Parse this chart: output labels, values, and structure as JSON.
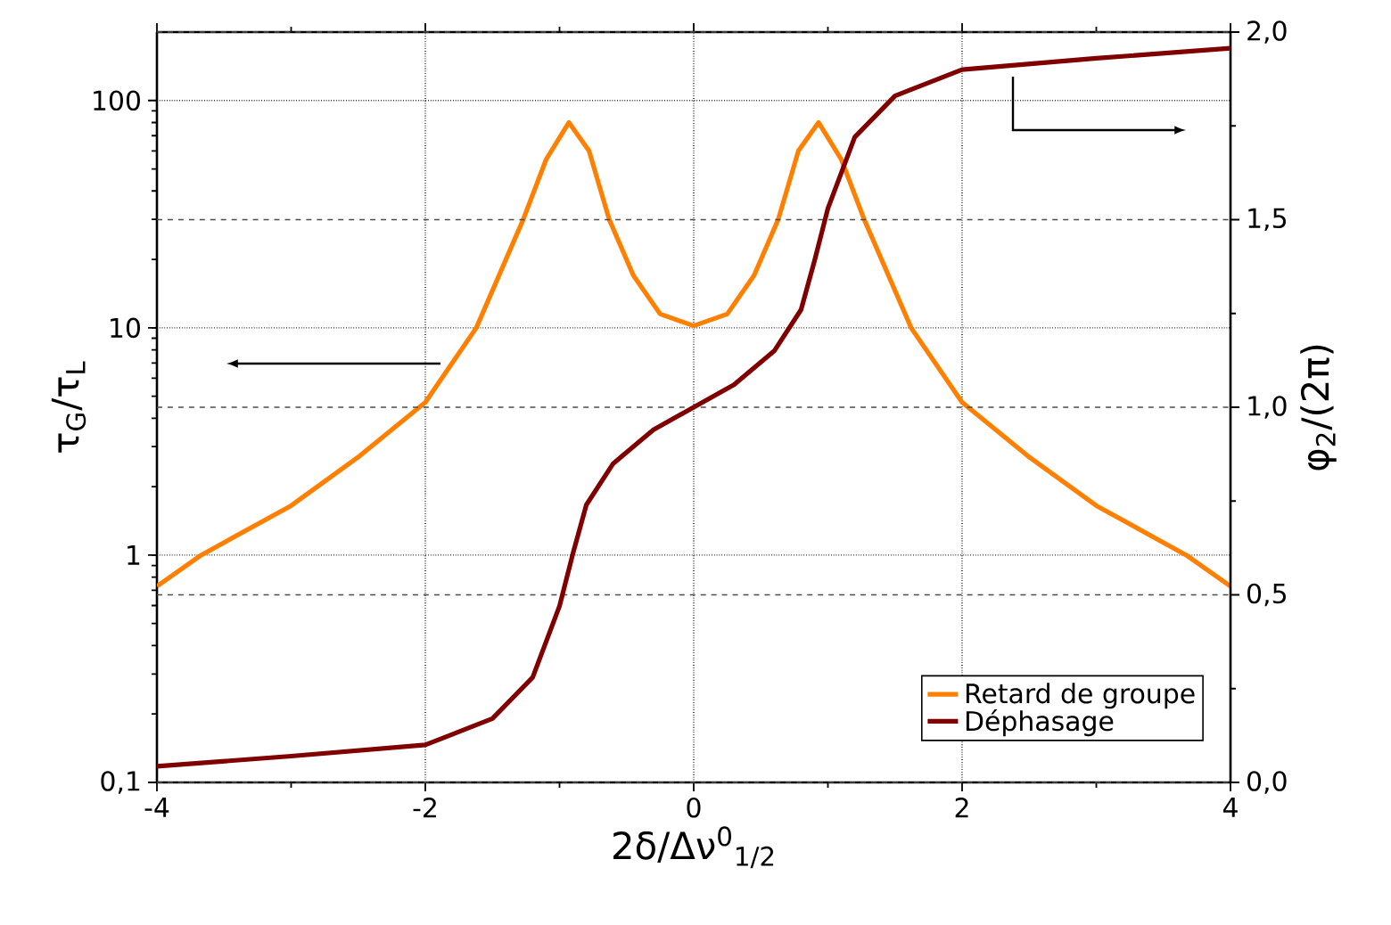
{
  "chart_data": {
    "type": "line",
    "xlabel": "2δ/Δν$^{0}$$_{1/2}$",
    "ylabel": "τ$_{G}$/τ$_{L}$",
    "y2label": "φ$_{2}$/(2π)",
    "xlim": [
      -4,
      4
    ],
    "xticks": [
      -4,
      -2,
      0,
      2,
      4
    ],
    "ylim": [
      0.1,
      200
    ],
    "yticks": [
      {
        "value": 0.1,
        "label": "0,1"
      },
      1,
      10,
      100
    ],
    "y2lim": [
      0,
      2
    ],
    "y2ticks": [
      {
        "value": 0,
        "label": "0,0"
      },
      {
        "value": 0.5,
        "label": "0,5"
      },
      {
        "value": 1,
        "label": "1,0"
      },
      {
        "value": 1.5,
        "label": "1,5"
      },
      {
        "value": 2,
        "label": "2,0"
      }
    ],
    "log": "y",
    "grid": true,
    "legend": "bottom right",
    "line_style": "solid",
    "marker": "none",
    "series": [
      {
        "name": "Retard de groupe",
        "color": "#ff8000",
        "x": [
          -4,
          -3.67,
          -3,
          -2.5,
          -2,
          -1.62,
          -1.27,
          -1.1,
          -0.93,
          -0.78,
          -0.63,
          -0.45,
          -0.25,
          0,
          0.25,
          0.45,
          0.63,
          0.78,
          0.93,
          1.1,
          1.27,
          1.62,
          2,
          2.5,
          3,
          3.67,
          4
        ],
        "values": [
          0.73,
          1.0,
          1.65,
          2.7,
          4.7,
          10,
          30,
          55,
          80,
          60,
          30,
          17,
          11.5,
          10.2,
          11.5,
          17,
          30,
          60,
          80,
          55,
          30,
          10,
          4.7,
          2.7,
          1.65,
          1.0,
          0.73
        ]
      },
      {
        "name": "Déphasage",
        "color": "#800000",
        "axis": "y2",
        "x": [
          -4,
          -3,
          -2,
          -1.5,
          -1.2,
          -1,
          -0.9,
          -0.8,
          -0.6,
          -0.3,
          0,
          0.3,
          0.6,
          0.8,
          0.9,
          1,
          1.2,
          1.5,
          2,
          3,
          4
        ],
        "values": [
          0.043,
          0.07,
          0.1,
          0.17,
          0.28,
          0.47,
          0.61,
          0.74,
          0.85,
          0.94,
          1.0,
          1.06,
          1.15,
          1.26,
          1.39,
          1.53,
          1.72,
          1.83,
          1.9,
          1.93,
          1.957
        ]
      }
    ]
  }
}
